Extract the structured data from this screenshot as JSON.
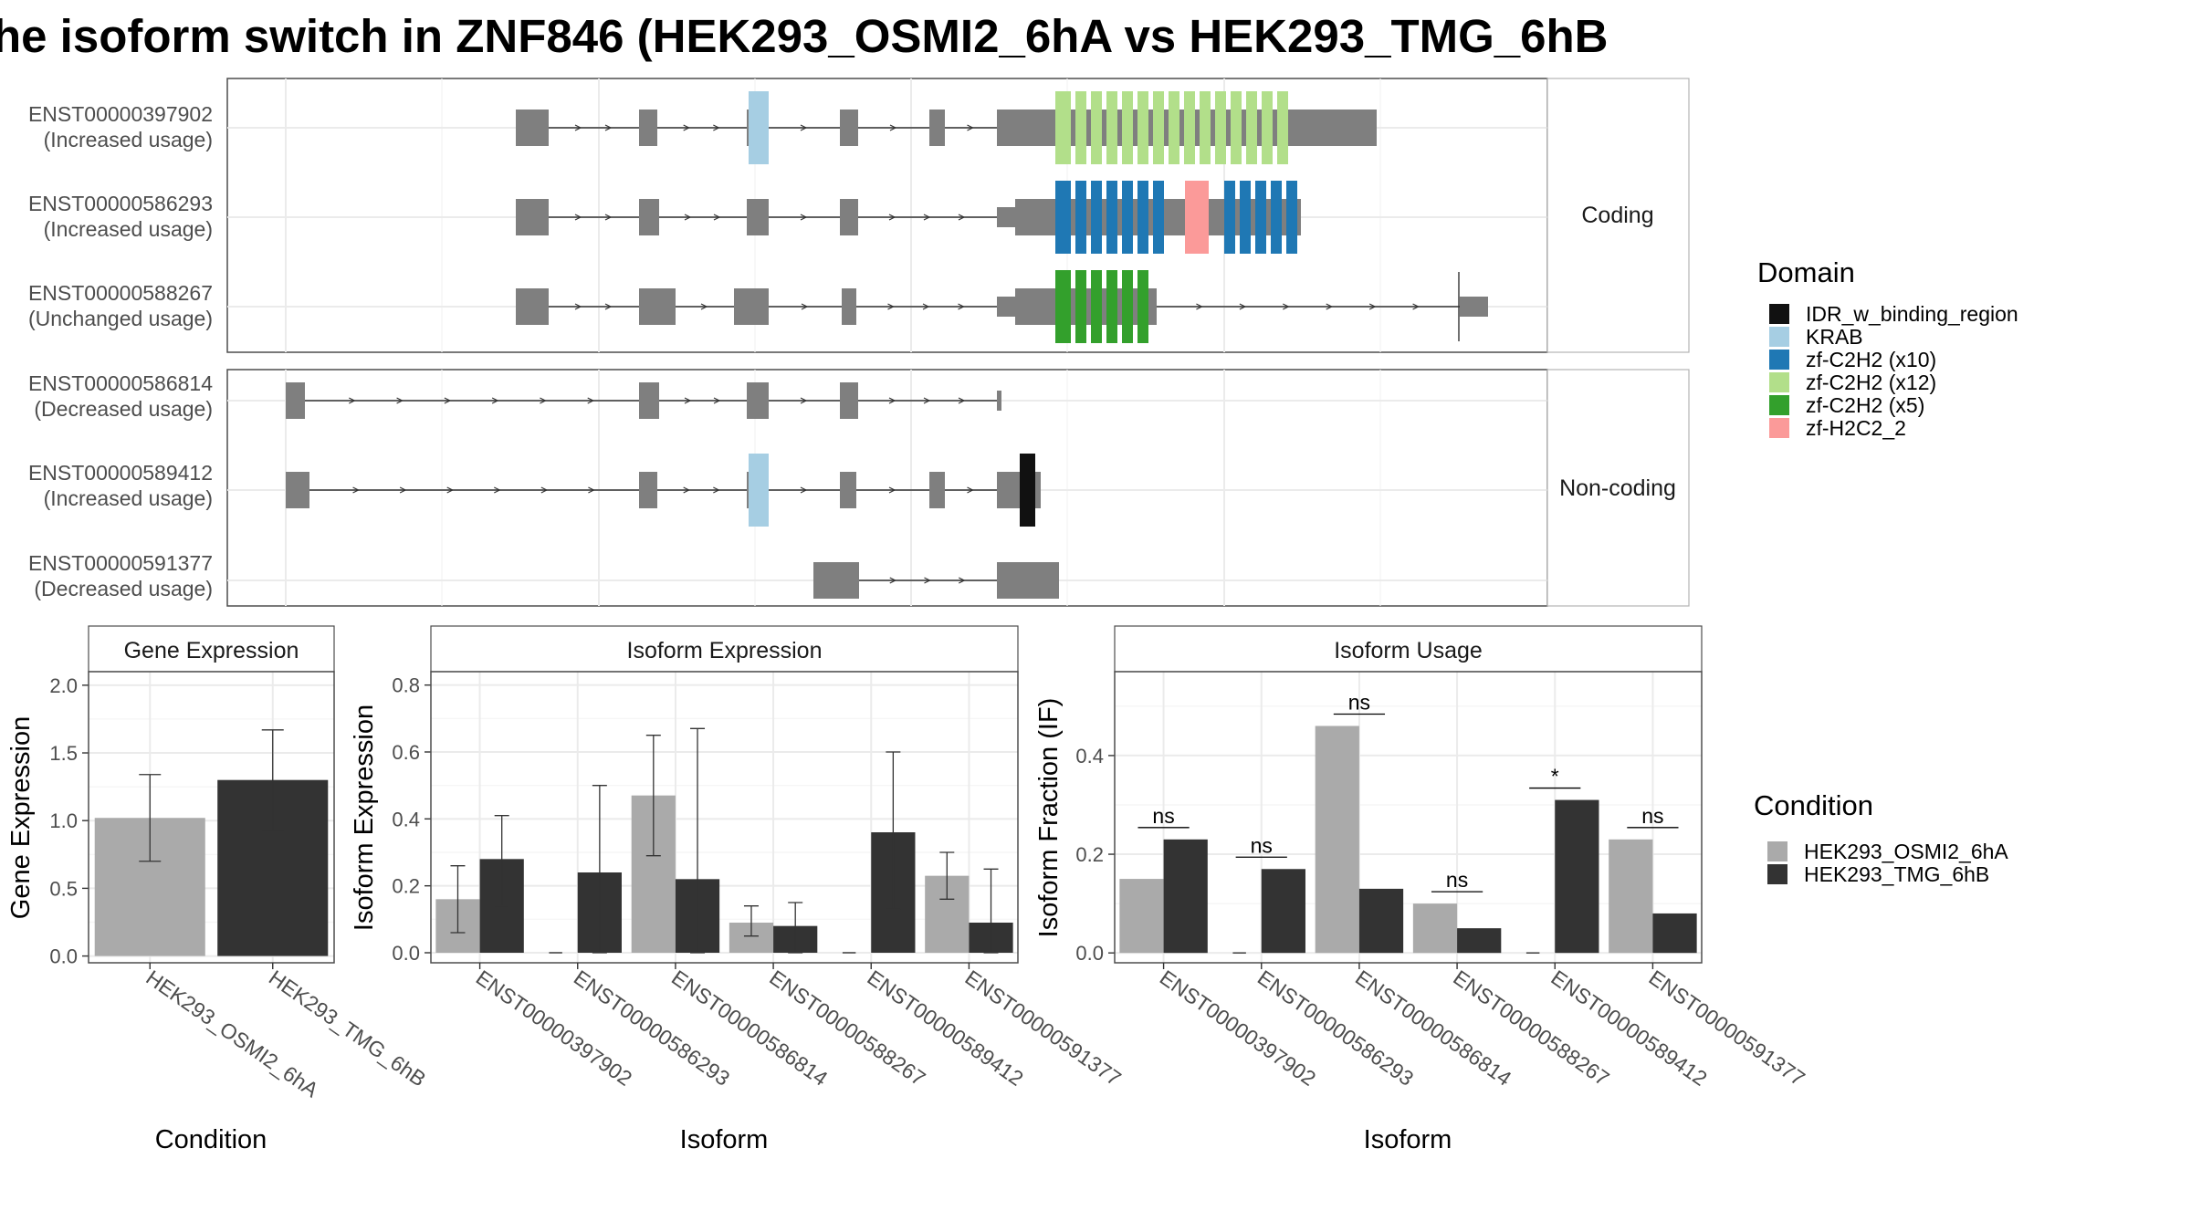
{
  "title": "he isoform switch in ZNF846 (HEK293_OSMI2_6hA vs HEK293_TMG_6hB",
  "colors": {
    "exon": "#7f7f7f",
    "panel_border": "#4d4d4d",
    "strip_border": "#b3b3b3",
    "grid": "#ebebeb",
    "cond_a": "#aaaaaa",
    "cond_b": "#333333"
  },
  "transcripts": {
    "strips": [
      "Coding",
      "Non-coding"
    ],
    "rows": [
      {
        "id": "ENST00000397902",
        "usage": "(Increased usage)",
        "group": "Coding"
      },
      {
        "id": "ENST00000586293",
        "usage": "(Increased usage)",
        "group": "Coding"
      },
      {
        "id": "ENST00000588267",
        "usage": "(Unchanged usage)",
        "group": "Coding"
      },
      {
        "id": "ENST00000586814",
        "usage": "(Decreased usage)",
        "group": "Non-coding"
      },
      {
        "id": "ENST00000589412",
        "usage": "(Increased usage)",
        "group": "Non-coding"
      },
      {
        "id": "ENST00000591377",
        "usage": "(Decreased usage)",
        "group": "Non-coding"
      }
    ]
  },
  "domain_legend": {
    "title": "Domain",
    "items": [
      {
        "label": "IDR_w_binding_region",
        "color": "#111111"
      },
      {
        "label": "KRAB",
        "color": "#a6cee3"
      },
      {
        "label": "zf-C2H2 (x10)",
        "color": "#1f78b4"
      },
      {
        "label": "zf-C2H2 (x12)",
        "color": "#b2df8a"
      },
      {
        "label": "zf-C2H2 (x5)",
        "color": "#33a02c"
      },
      {
        "label": "zf-H2C2_2",
        "color": "#fb9a99"
      }
    ]
  },
  "condition_legend": {
    "title": "Condition",
    "items": [
      {
        "label": "HEK293_OSMI2_6hA",
        "color": "#aaaaaa"
      },
      {
        "label": "HEK293_TMG_6hB",
        "color": "#333333"
      }
    ]
  },
  "chart_data": [
    {
      "type": "bar",
      "title": "Gene Expression",
      "xlabel": "Condition",
      "ylabel": "Gene Expression",
      "ylim": [
        -0.05,
        2.1
      ],
      "yticks": [
        "0.0",
        "0.5",
        "1.0",
        "1.5",
        "2.0"
      ],
      "categories": [
        "HEK293_OSMI2_6hA",
        "HEK293_TMG_6hB"
      ],
      "values": [
        1.02,
        1.3
      ],
      "error_low": [
        0.7,
        0.93
      ],
      "error_high": [
        1.34,
        1.67
      ]
    },
    {
      "type": "bar",
      "title": "Isoform Expression",
      "xlabel": "Isoform",
      "ylabel": "Isoform Expression",
      "ylim": [
        -0.03,
        0.84
      ],
      "yticks": [
        "0.0",
        "0.2",
        "0.4",
        "0.6",
        "0.8"
      ],
      "categories": [
        "ENST00000397902",
        "ENST00000586293",
        "ENST00000586814",
        "ENST00000588267",
        "ENST00000589412",
        "ENST00000591377"
      ],
      "series": [
        {
          "name": "HEK293_OSMI2_6hA",
          "values": [
            0.16,
            0.0,
            0.47,
            0.09,
            0.0,
            0.23
          ],
          "error_low": [
            0.06,
            0.0,
            0.29,
            0.05,
            0.0,
            0.16
          ],
          "error_high": [
            0.26,
            0.0,
            0.65,
            0.14,
            0.0,
            0.3
          ]
        },
        {
          "name": "HEK293_TMG_6hB",
          "values": [
            0.28,
            0.24,
            0.22,
            0.08,
            0.36,
            0.09
          ],
          "error_low": [
            0.14,
            0.0,
            0.0,
            0.0,
            0.13,
            0.0
          ],
          "error_high": [
            0.41,
            0.5,
            0.67,
            0.15,
            0.6,
            0.25
          ]
        }
      ]
    },
    {
      "type": "bar",
      "title": "Isoform Usage",
      "xlabel": "Isoform",
      "ylabel": "Isoform Fraction (IF)",
      "ylim": [
        -0.02,
        0.57
      ],
      "yticks": [
        "0.0",
        "0.2",
        "0.4"
      ],
      "categories": [
        "ENST00000397902",
        "ENST00000586293",
        "ENST00000586814",
        "ENST00000588267",
        "ENST00000589412",
        "ENST00000591377"
      ],
      "series": [
        {
          "name": "HEK293_OSMI2_6hA",
          "values": [
            0.15,
            0.0,
            0.46,
            0.1,
            0.0,
            0.23
          ]
        },
        {
          "name": "HEK293_TMG_6hB",
          "values": [
            0.23,
            0.17,
            0.13,
            0.05,
            0.31,
            0.08
          ]
        }
      ],
      "significance": [
        "ns",
        "ns",
        "ns",
        "ns",
        "*",
        "ns"
      ]
    }
  ]
}
